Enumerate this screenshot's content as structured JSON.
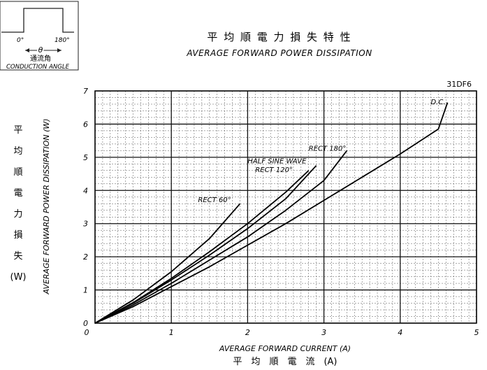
{
  "inset": {
    "angle_start": "0°",
    "angle_end": "180°",
    "theta": "θ",
    "label_jp": "通流角",
    "label_en": "CONDUCTION ANGLE"
  },
  "header": {
    "title_jp": "平 均 順 電 力 損 失 特 性",
    "title_en": "AVERAGE FORWARD POWER DISSIPATION",
    "part_number": "31DF6"
  },
  "chart_data": {
    "type": "line",
    "xlabel": "AVERAGE FORWARD CURRENT (A)",
    "xlabel_jp": "平　均　順　電　流　(A)",
    "ylabel": "AVERAGE FORWARD POWER DISSIPATION (W)",
    "ylabel_jp": [
      "平",
      "均",
      "順",
      "電",
      "力",
      "損",
      "失"
    ],
    "ylabel_jp_unit": "(W)",
    "xlim": [
      0,
      5
    ],
    "ylim": [
      0,
      7
    ],
    "x_ticks": [
      "0",
      "1",
      "2",
      "3",
      "4",
      "5"
    ],
    "y_ticks": [
      "0",
      "1",
      "2",
      "3",
      "4",
      "5",
      "6",
      "7"
    ],
    "grid": true,
    "series": [
      {
        "name": "D.C.",
        "x": [
          0,
          0.5,
          1,
          1.5,
          2,
          2.5,
          3,
          3.5,
          4,
          4.5,
          4.62
        ],
        "y": [
          0,
          0.5,
          1.1,
          1.7,
          2.35,
          3.0,
          3.7,
          4.4,
          5.1,
          5.85,
          6.65
        ]
      },
      {
        "name": "RECT 180°",
        "x": [
          0,
          0.5,
          1,
          1.5,
          2,
          2.5,
          3,
          3.3
        ],
        "y": [
          0,
          0.55,
          1.2,
          1.9,
          2.6,
          3.4,
          4.3,
          5.2
        ]
      },
      {
        "name": "HALF SINE WAVE",
        "x": [
          0,
          0.5,
          1,
          1.5,
          2,
          2.5,
          2.9
        ],
        "y": [
          0,
          0.6,
          1.3,
          2.05,
          2.85,
          3.75,
          4.75
        ]
      },
      {
        "name": "RECT 120°",
        "x": [
          0,
          0.5,
          1,
          1.5,
          2,
          2.5,
          2.8
        ],
        "y": [
          0,
          0.62,
          1.35,
          2.15,
          3.0,
          3.95,
          4.6
        ]
      },
      {
        "name": "RECT 60°",
        "x": [
          0,
          0.5,
          1,
          1.5,
          1.9
        ],
        "y": [
          0,
          0.7,
          1.55,
          2.55,
          3.6
        ]
      }
    ],
    "labels": [
      {
        "text": "D.C.",
        "x": 4.4,
        "y": 6.6
      },
      {
        "text": "RECT 180°",
        "x": 2.8,
        "y": 5.2
      },
      {
        "text": "HALF SINE WAVE",
        "x": 2.0,
        "y": 4.82
      },
      {
        "text": "RECT 120°",
        "x": 2.1,
        "y": 4.55
      },
      {
        "text": "RECT 60°",
        "x": 1.35,
        "y": 3.65
      }
    ]
  }
}
